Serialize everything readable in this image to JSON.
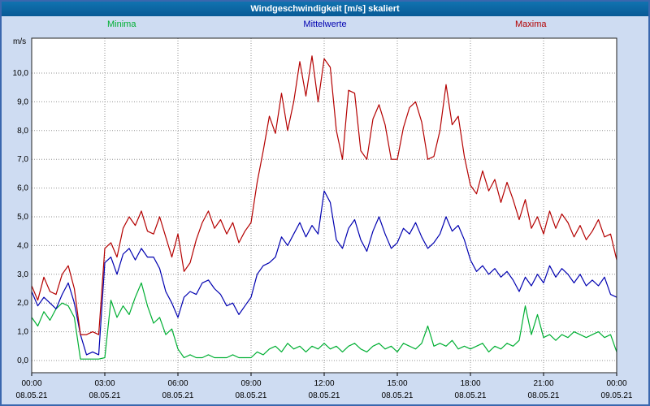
{
  "window": {
    "title": "Windgeschwindigkeit [m/s] skaliert"
  },
  "colors": {
    "titlebar_bg": "#0e68a6",
    "page_bg": "#cedcf2",
    "plot_bg": "#ffffff",
    "grid": "#909090",
    "axis_text": "#000000"
  },
  "chart_data": {
    "type": "line",
    "title": "Windgeschwindigkeit [m/s] skaliert",
    "ylabel": "m/s",
    "xlabel": "",
    "ylim": [
      0,
      10.6
    ],
    "grid": "dotted",
    "legend_position": "top",
    "tick_interval_hours": 3,
    "sample_interval_hours": 0.25,
    "y_ticks": [
      {
        "value": 0,
        "label": "0,0"
      },
      {
        "value": 1,
        "label": "1,0"
      },
      {
        "value": 2,
        "label": "2,0"
      },
      {
        "value": 3,
        "label": "3,0"
      },
      {
        "value": 4,
        "label": "4,0"
      },
      {
        "value": 5,
        "label": "5,0"
      },
      {
        "value": 6,
        "label": "6,0"
      },
      {
        "value": 7,
        "label": "7,0"
      },
      {
        "value": 8,
        "label": "8,0"
      },
      {
        "value": 9,
        "label": "9,0"
      },
      {
        "value": 10,
        "label": "10,0"
      }
    ],
    "x_ticks": [
      {
        "time": "00:00",
        "date": "08.05.21"
      },
      {
        "time": "03:00",
        "date": "08.05.21"
      },
      {
        "time": "06:00",
        "date": "08.05.21"
      },
      {
        "time": "09:00",
        "date": "08.05.21"
      },
      {
        "time": "12:00",
        "date": "08.05.21"
      },
      {
        "time": "15:00",
        "date": "08.05.21"
      },
      {
        "time": "18:00",
        "date": "08.05.21"
      },
      {
        "time": "21:00",
        "date": "08.05.21"
      },
      {
        "time": "00:00",
        "date": "09.05.21"
      }
    ],
    "series": [
      {
        "name": "Minima",
        "color": "#00af33",
        "values": [
          1.5,
          1.2,
          1.7,
          1.4,
          1.8,
          2.0,
          1.9,
          1.5,
          0.05,
          0.05,
          0.05,
          0.05,
          0.1,
          2.1,
          1.5,
          1.9,
          1.6,
          2.2,
          2.7,
          1.9,
          1.3,
          1.5,
          0.9,
          1.1,
          0.4,
          0.1,
          0.2,
          0.1,
          0.1,
          0.2,
          0.1,
          0.1,
          0.1,
          0.2,
          0.1,
          0.1,
          0.1,
          0.3,
          0.2,
          0.4,
          0.5,
          0.3,
          0.6,
          0.4,
          0.5,
          0.3,
          0.5,
          0.4,
          0.6,
          0.4,
          0.5,
          0.3,
          0.5,
          0.6,
          0.4,
          0.3,
          0.5,
          0.6,
          0.4,
          0.5,
          0.3,
          0.6,
          0.5,
          0.4,
          0.6,
          1.2,
          0.5,
          0.6,
          0.5,
          0.7,
          0.4,
          0.5,
          0.4,
          0.5,
          0.6,
          0.3,
          0.5,
          0.4,
          0.6,
          0.5,
          0.7,
          1.9,
          0.9,
          1.6,
          0.8,
          0.9,
          0.7,
          0.9,
          0.8,
          1.0,
          0.9,
          0.8,
          0.9,
          1.0,
          0.8,
          0.9,
          0.3
        ]
      },
      {
        "name": "Mittelwerte",
        "color": "#0000b0",
        "values": [
          2.4,
          1.9,
          2.2,
          2.0,
          1.8,
          2.3,
          2.7,
          2.0,
          0.9,
          0.2,
          0.3,
          0.2,
          3.4,
          3.6,
          3.0,
          3.7,
          3.9,
          3.5,
          3.9,
          3.6,
          3.6,
          3.2,
          2.4,
          2.0,
          1.5,
          2.2,
          2.4,
          2.3,
          2.7,
          2.8,
          2.5,
          2.3,
          1.9,
          2.0,
          1.6,
          1.9,
          2.2,
          3.0,
          3.3,
          3.4,
          3.6,
          4.3,
          4.0,
          4.4,
          4.8,
          4.3,
          4.7,
          4.4,
          5.9,
          5.5,
          4.2,
          3.9,
          4.6,
          4.9,
          4.2,
          3.8,
          4.5,
          5.0,
          4.4,
          3.9,
          4.1,
          4.6,
          4.4,
          4.8,
          4.3,
          3.9,
          4.1,
          4.4,
          5.0,
          4.5,
          4.7,
          4.2,
          3.5,
          3.1,
          3.3,
          3.0,
          3.2,
          2.9,
          3.1,
          2.8,
          2.4,
          2.9,
          2.6,
          3.0,
          2.7,
          3.3,
          2.9,
          3.2,
          3.0,
          2.7,
          3.0,
          2.6,
          2.8,
          2.6,
          2.9,
          2.3,
          2.2
        ]
      },
      {
        "name": "Maxima",
        "color": "#b40000",
        "values": [
          2.6,
          2.1,
          2.9,
          2.4,
          2.3,
          3.0,
          3.3,
          2.5,
          0.9,
          0.9,
          1.0,
          0.9,
          3.9,
          4.1,
          3.6,
          4.6,
          5.0,
          4.7,
          5.2,
          4.5,
          4.4,
          5.0,
          4.3,
          3.6,
          4.4,
          3.1,
          3.4,
          4.2,
          4.8,
          5.2,
          4.6,
          4.9,
          4.4,
          4.8,
          4.1,
          4.5,
          4.8,
          6.2,
          7.3,
          8.5,
          7.9,
          9.3,
          8.0,
          9.0,
          10.4,
          9.2,
          10.6,
          9.0,
          10.5,
          10.2,
          8.0,
          7.0,
          9.4,
          9.3,
          7.3,
          7.0,
          8.4,
          8.9,
          8.2,
          7.0,
          7.0,
          8.1,
          8.8,
          9.0,
          8.3,
          7.0,
          7.1,
          8.0,
          9.6,
          8.2,
          8.5,
          7.1,
          6.1,
          5.8,
          6.6,
          5.9,
          6.3,
          5.5,
          6.2,
          5.6,
          4.9,
          5.6,
          4.6,
          5.0,
          4.4,
          5.2,
          4.6,
          5.1,
          4.8,
          4.3,
          4.7,
          4.2,
          4.5,
          4.9,
          4.3,
          4.4,
          3.5
        ]
      }
    ]
  }
}
